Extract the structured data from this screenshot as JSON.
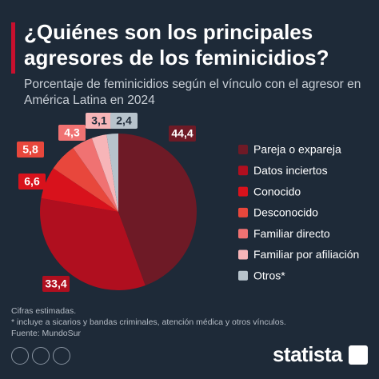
{
  "chart_data": {
    "type": "pie",
    "title": "¿Quiénes son los principales agresores de los feminicidios?",
    "subtitle": "Porcentaje de feminicidios según el vínculo con el agresor en América Latina en 2024",
    "categories": [
      "Pareja o expareja",
      "Datos inciertos",
      "Conocido",
      "Desconocido",
      "Familiar directo",
      "Familiar por afiliación",
      "Otros*"
    ],
    "values": [
      44.4,
      33.4,
      6.6,
      5.8,
      4.3,
      3.1,
      2.4
    ],
    "value_labels": [
      "44,4",
      "33,4",
      "6,6",
      "5,8",
      "4,3",
      "3,1",
      "2,4"
    ],
    "colors": [
      "#6e1a26",
      "#b00f1f",
      "#d8121c",
      "#e8473c",
      "#f07272",
      "#f7b5b8",
      "#b7c3cc"
    ],
    "notes": [
      "Cifras estimadas.",
      "* incluye a sicarios y bandas criminales, atención médica y otros vínculos.",
      "Fuente: MundoSur"
    ],
    "brand": "statista"
  }
}
